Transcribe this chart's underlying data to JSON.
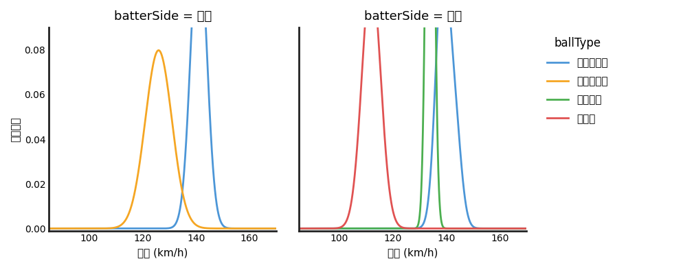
{
  "title_left": "batterSide = 左打",
  "title_right": "batterSide = 右打",
  "xlabel": "球速 (km/h)",
  "ylabel": "確率密度",
  "legend_title": "ballType",
  "xlim": [
    85,
    170
  ],
  "ylim": [
    -0.001,
    0.09
  ],
  "yticks": [
    0.0,
    0.02,
    0.04,
    0.06,
    0.08
  ],
  "xticks": [
    100,
    120,
    140,
    160
  ],
  "ball_types": [
    "ストレート",
    "スライダー",
    "フォーク",
    "カーブ"
  ],
  "colors": {
    "ストレート": "#4C96D7",
    "スライダー": "#F5A623",
    "フォーク": "#4CAF50",
    "カーブ": "#E05252"
  },
  "left_data": {
    "ストレート": [
      {
        "mean": 141.0,
        "std": 3.0,
        "weight": 1.0
      }
    ],
    "スライダー": [
      {
        "mean": 126.0,
        "std": 5.0,
        "weight": 1.0
      }
    ]
  },
  "right_data": {
    "ストレート": [
      {
        "mean": 138.5,
        "std": 2.5,
        "weight": 0.7
      },
      {
        "mean": 143.0,
        "std": 2.5,
        "weight": 0.3
      }
    ],
    "フォーク": [
      {
        "mean": 134.0,
        "std": 1.4,
        "weight": 1.0
      }
    ],
    "カーブ": [
      {
        "mean": 112.0,
        "std": 3.5,
        "weight": 1.0
      }
    ]
  },
  "background_color": "#FFFFFF",
  "title_fontsize": 13,
  "label_fontsize": 11,
  "tick_fontsize": 10,
  "legend_fontsize": 11,
  "line_width": 2.0
}
